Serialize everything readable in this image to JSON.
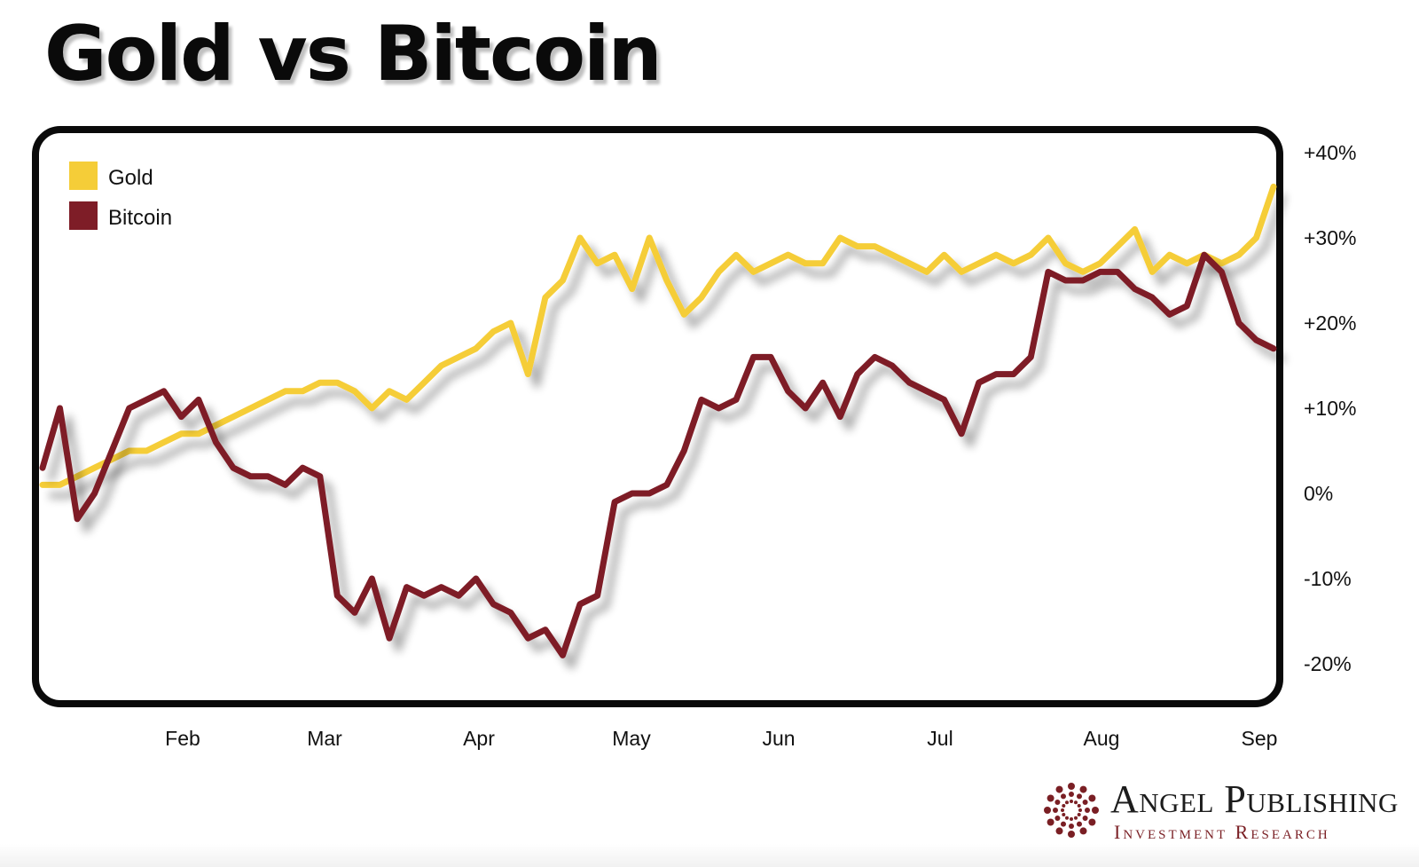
{
  "title": "Gold vs Bitcoin",
  "chart_data": {
    "type": "line",
    "title": "Gold vs Bitcoin",
    "xlabel": "",
    "ylabel": "",
    "ylim": [
      -25,
      40
    ],
    "xlim": [
      0,
      7.1
    ],
    "y_ticks": [
      40,
      30,
      20,
      10,
      0,
      -10,
      -20
    ],
    "y_tick_labels": [
      "+40%",
      "+30%",
      "+20%",
      "+10%",
      "0%",
      "-10%",
      "-20%"
    ],
    "x_ticks": [
      1,
      2,
      3,
      4,
      5,
      6,
      7,
      8
    ],
    "x_tick_labels": [
      "Feb",
      "Mar",
      "Apr",
      "May",
      "Jun",
      "Jul",
      "Aug",
      "Sep"
    ],
    "x_tick_positions_note": "",
    "legend_position": "top-left",
    "grid": false,
    "series": [
      {
        "name": "Gold",
        "color": "#F5CD38",
        "x": [
          0.0,
          0.1,
          0.2,
          0.3,
          0.4,
          0.5,
          0.6,
          0.7,
          0.8,
          0.9,
          1.0,
          1.1,
          1.2,
          1.3,
          1.4,
          1.5,
          1.6,
          1.7,
          1.8,
          1.9,
          2.0,
          2.1,
          2.2,
          2.3,
          2.4,
          2.5,
          2.6,
          2.7,
          2.8,
          2.9,
          3.0,
          3.1,
          3.2,
          3.3,
          3.4,
          3.5,
          3.6,
          3.7,
          3.8,
          3.9,
          4.0,
          4.1,
          4.2,
          4.3,
          4.4,
          4.5,
          4.6,
          4.7,
          4.8,
          4.9,
          5.0,
          5.1,
          5.2,
          5.3,
          5.4,
          5.5,
          5.6,
          5.7,
          5.8,
          5.9,
          6.0,
          6.1,
          6.2,
          6.3,
          6.4,
          6.5,
          6.6,
          6.7,
          6.8,
          6.9,
          7.0,
          7.1
        ],
        "values": [
          1,
          1,
          2,
          3,
          4,
          5,
          5,
          6,
          7,
          7,
          8,
          9,
          10,
          11,
          12,
          12,
          13,
          13,
          12,
          10,
          12,
          11,
          13,
          15,
          16,
          17,
          19,
          20,
          14,
          23,
          25,
          30,
          27,
          28,
          24,
          30,
          25,
          21,
          23,
          26,
          28,
          26,
          27,
          28,
          27,
          27,
          30,
          29,
          29,
          28,
          27,
          26,
          28,
          26,
          27,
          28,
          27,
          28,
          30,
          27,
          26,
          27,
          29,
          31,
          26,
          28,
          27,
          28,
          27,
          28,
          30,
          36
        ]
      },
      {
        "name": "Bitcoin",
        "color": "#7E1D27",
        "x": [
          0.0,
          0.1,
          0.2,
          0.3,
          0.4,
          0.5,
          0.6,
          0.7,
          0.8,
          0.9,
          1.0,
          1.1,
          1.2,
          1.3,
          1.4,
          1.5,
          1.6,
          1.7,
          1.8,
          1.9,
          2.0,
          2.1,
          2.2,
          2.3,
          2.4,
          2.5,
          2.6,
          2.7,
          2.8,
          2.9,
          3.0,
          3.1,
          3.2,
          3.3,
          3.4,
          3.5,
          3.6,
          3.7,
          3.8,
          3.9,
          4.0,
          4.1,
          4.2,
          4.3,
          4.4,
          4.5,
          4.6,
          4.7,
          4.8,
          4.9,
          5.0,
          5.1,
          5.2,
          5.3,
          5.4,
          5.5,
          5.6,
          5.7,
          5.8,
          5.9,
          6.0,
          6.1,
          6.2,
          6.3,
          6.4,
          6.5,
          6.6,
          6.7,
          6.8,
          6.9,
          7.0,
          7.1
        ],
        "values": [
          3,
          10,
          -3,
          0,
          5,
          10,
          11,
          12,
          9,
          11,
          6,
          3,
          2,
          2,
          1,
          3,
          2,
          -12,
          -14,
          -10,
          -17,
          -11,
          -12,
          -11,
          -12,
          -10,
          -13,
          -14,
          -17,
          -16,
          -19,
          -13,
          -12,
          -1,
          0,
          0,
          1,
          5,
          11,
          10,
          11,
          16,
          16,
          12,
          10,
          13,
          9,
          14,
          16,
          15,
          13,
          12,
          11,
          7,
          13,
          14,
          14,
          16,
          26,
          25,
          25,
          26,
          26,
          24,
          23,
          21,
          22,
          28,
          26,
          20,
          18,
          17
        ]
      }
    ]
  },
  "legend": {
    "gold_label": "Gold",
    "bitcoin_label": "Bitcoin"
  },
  "colors": {
    "gold": "#F5CD38",
    "bitcoin": "#7E1D27",
    "frame": "#0a0a0a",
    "brand": "#7A1F24"
  },
  "branding": {
    "name": "Angel Publishing",
    "tagline": "Investment Research"
  }
}
